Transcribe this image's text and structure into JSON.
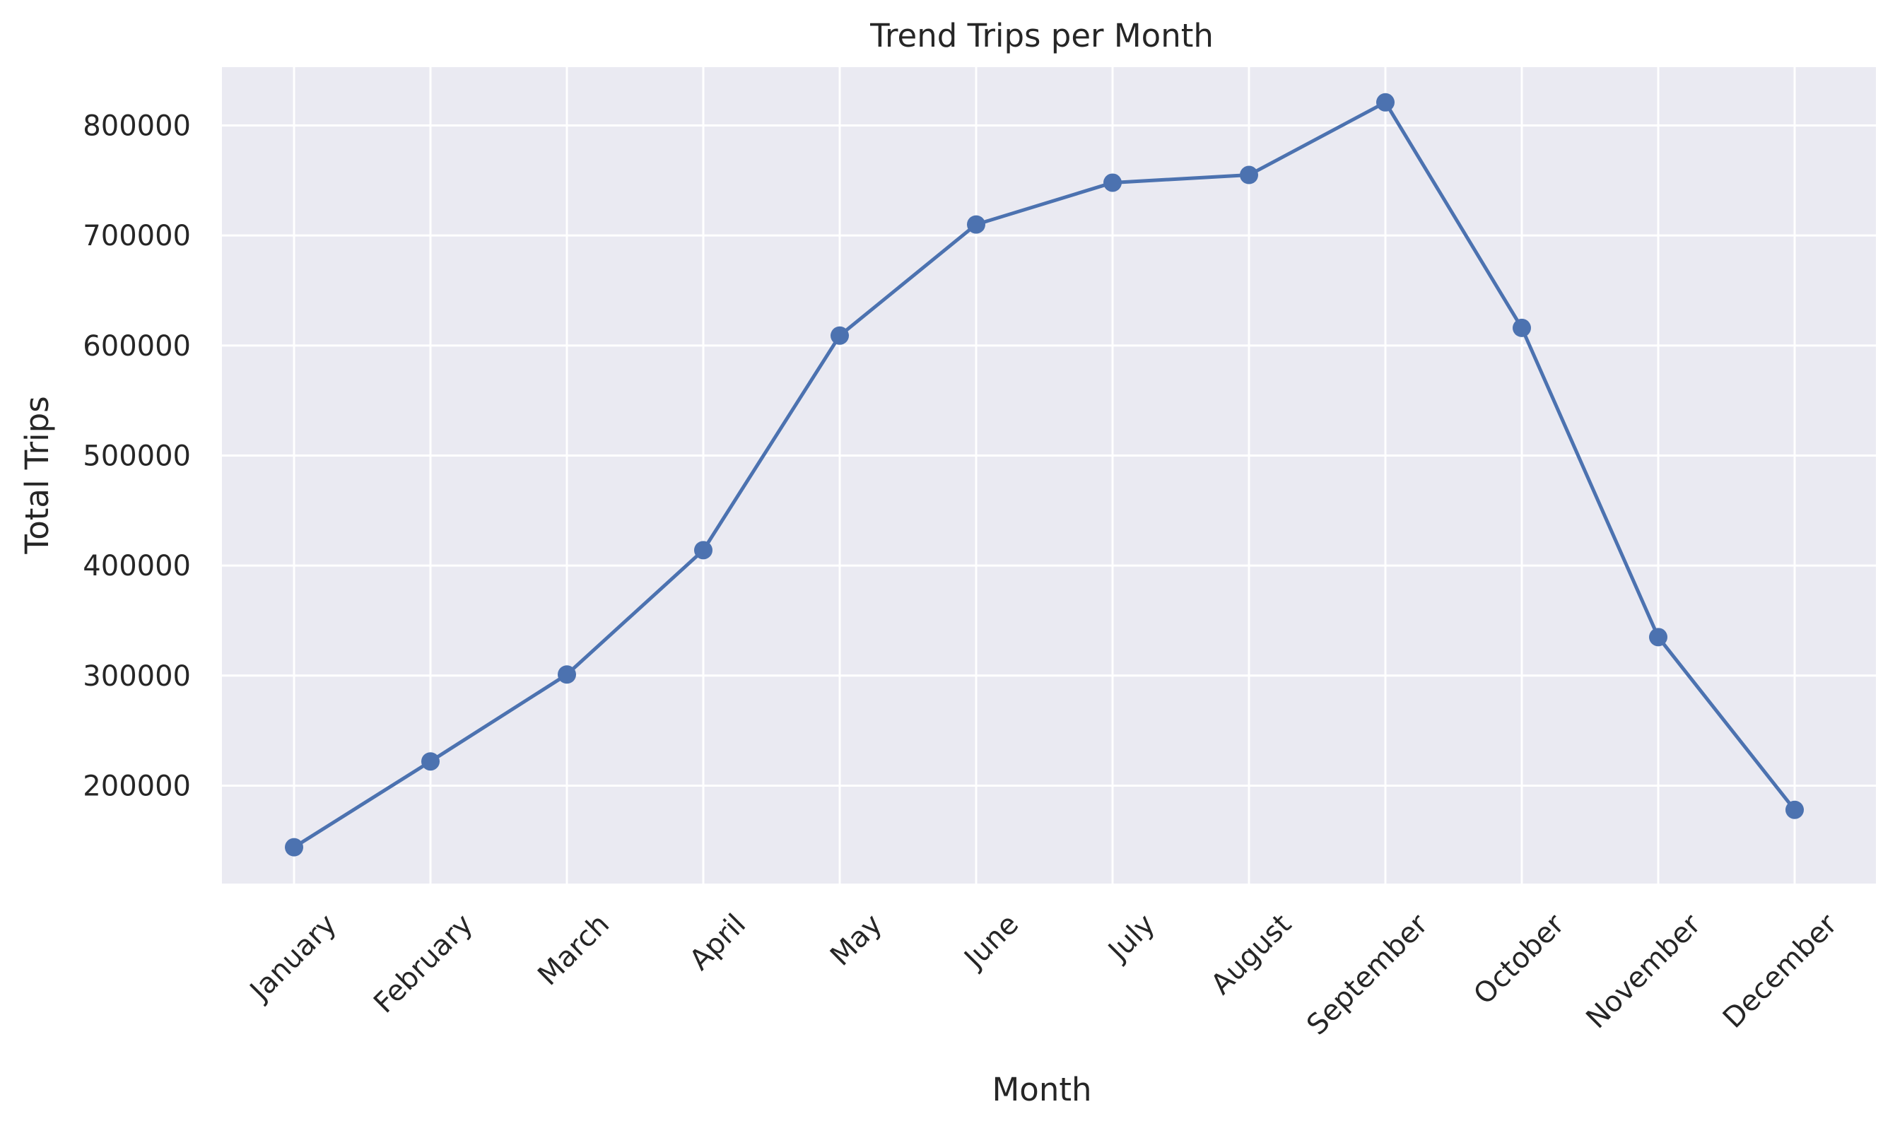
{
  "chart_data": {
    "type": "line",
    "title": "Trend Trips per Month",
    "xlabel": "Month",
    "ylabel": "Total Trips",
    "categories": [
      "January",
      "February",
      "March",
      "April",
      "May",
      "June",
      "July",
      "August",
      "September",
      "October",
      "November",
      "December"
    ],
    "series": [
      {
        "values": [
          144000,
          222000,
          301000,
          414000,
          609000,
          710000,
          748000,
          755000,
          821000,
          616000,
          335000,
          178000
        ]
      }
    ],
    "yticks": [
      200000,
      300000,
      400000,
      500000,
      600000,
      700000,
      800000
    ],
    "ylim": [
      111000,
      853000
    ],
    "grid": true,
    "marker": "circle",
    "colors": {
      "line": "#4c72b0",
      "plot_background": "#eaeaf2",
      "grid": "#ffffff",
      "text": "#262626"
    }
  }
}
